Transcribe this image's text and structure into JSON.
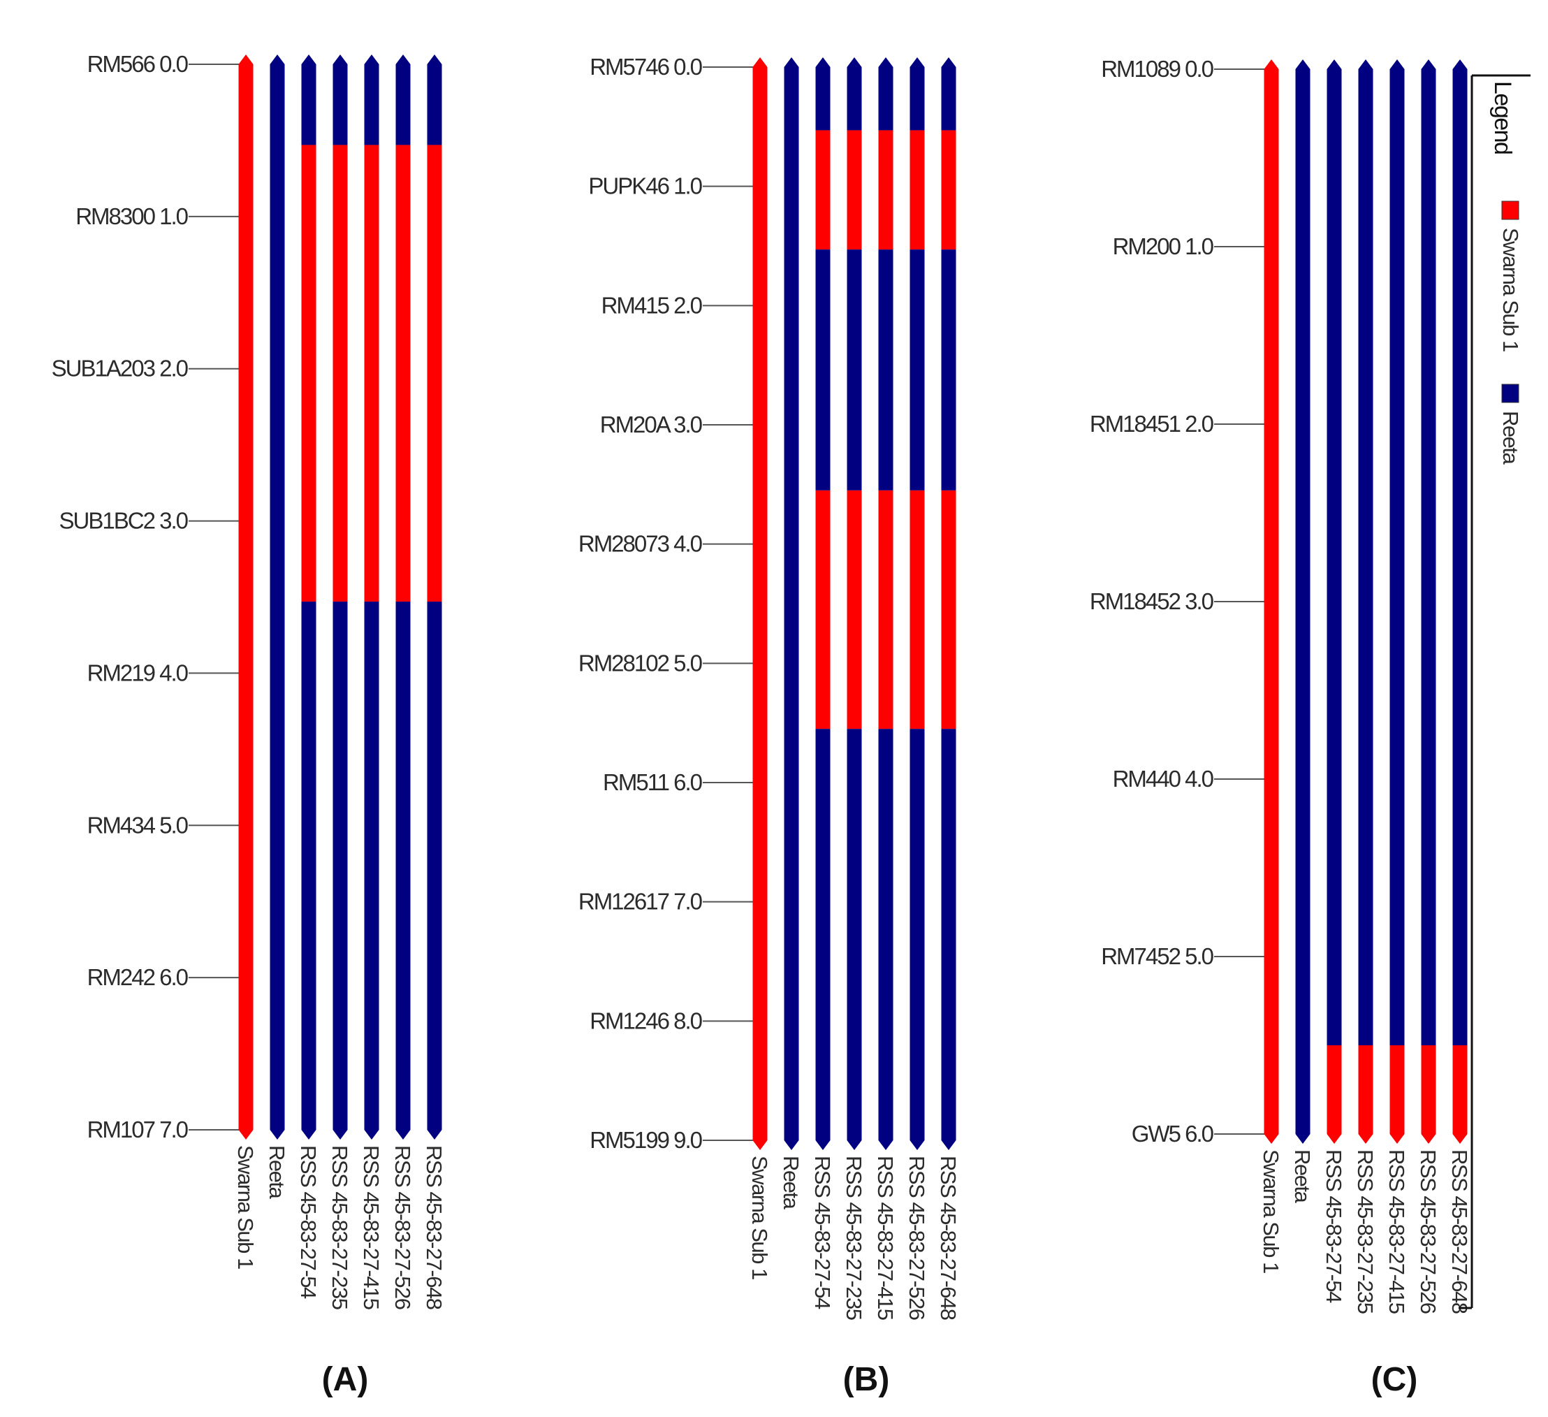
{
  "colors": {
    "donor": "#ff0000",
    "recurrent": "#000080",
    "tick": "#555555",
    "text": "#2b2b2b"
  },
  "chart_data": [
    {
      "type": "graphical-genotype",
      "panel_label": "(A)",
      "markers": [
        {
          "name": "RM566",
          "pos": "0.0"
        },
        {
          "name": "RM8300",
          "pos": "1.0"
        },
        {
          "name": "SUB1A203",
          "pos": "2.0"
        },
        {
          "name": "SUB1BC2",
          "pos": "3.0"
        },
        {
          "name": "RM219",
          "pos": "4.0"
        },
        {
          "name": "RM434",
          "pos": "5.0"
        },
        {
          "name": "RM242",
          "pos": "6.0"
        },
        {
          "name": "RM107",
          "pos": "7.0"
        }
      ],
      "lines": [
        {
          "name": "Swarna Sub 1",
          "segments": [
            {
              "from": 0.0,
              "to": 7.0,
              "allele": "donor"
            }
          ]
        },
        {
          "name": "Reeta",
          "segments": [
            {
              "from": 0.0,
              "to": 7.0,
              "allele": "recurrent"
            }
          ]
        },
        {
          "name": "RSS 45-83-27-54",
          "segments": [
            {
              "from": 0.0,
              "to": 0.53,
              "allele": "recurrent"
            },
            {
              "from": 0.53,
              "to": 3.53,
              "allele": "donor"
            },
            {
              "from": 3.53,
              "to": 7.0,
              "allele": "recurrent"
            }
          ]
        },
        {
          "name": "RSS 45-83-27-235",
          "segments": [
            {
              "from": 0.0,
              "to": 0.53,
              "allele": "recurrent"
            },
            {
              "from": 0.53,
              "to": 3.53,
              "allele": "donor"
            },
            {
              "from": 3.53,
              "to": 7.0,
              "allele": "recurrent"
            }
          ]
        },
        {
          "name": "RSS 45-83-27-415",
          "segments": [
            {
              "from": 0.0,
              "to": 0.53,
              "allele": "recurrent"
            },
            {
              "from": 0.53,
              "to": 3.53,
              "allele": "donor"
            },
            {
              "from": 3.53,
              "to": 7.0,
              "allele": "recurrent"
            }
          ]
        },
        {
          "name": "RSS 45-83-27-526",
          "segments": [
            {
              "from": 0.0,
              "to": 0.53,
              "allele": "recurrent"
            },
            {
              "from": 0.53,
              "to": 3.53,
              "allele": "donor"
            },
            {
              "from": 3.53,
              "to": 7.0,
              "allele": "recurrent"
            }
          ]
        },
        {
          "name": "RSS 45-83-27-648",
          "segments": [
            {
              "from": 0.0,
              "to": 0.53,
              "allele": "recurrent"
            },
            {
              "from": 0.53,
              "to": 3.53,
              "allele": "donor"
            },
            {
              "from": 3.53,
              "to": 7.0,
              "allele": "recurrent"
            }
          ]
        }
      ]
    },
    {
      "type": "graphical-genotype",
      "panel_label": "(B)",
      "markers": [
        {
          "name": "RM5746",
          "pos": "0.0"
        },
        {
          "name": "PUPK46",
          "pos": "1.0"
        },
        {
          "name": "RM415",
          "pos": "2.0"
        },
        {
          "name": "RM20A",
          "pos": "3.0"
        },
        {
          "name": "RM28073",
          "pos": "4.0"
        },
        {
          "name": "RM28102",
          "pos": "5.0"
        },
        {
          "name": "RM511",
          "pos": "6.0"
        },
        {
          "name": "RM12617",
          "pos": "7.0"
        },
        {
          "name": "RM1246",
          "pos": "8.0"
        },
        {
          "name": "RM5199",
          "pos": "9.0"
        }
      ],
      "lines": [
        {
          "name": "Swarna Sub 1",
          "segments": [
            {
              "from": 0.0,
              "to": 9.0,
              "allele": "donor"
            }
          ]
        },
        {
          "name": "Reeta",
          "segments": [
            {
              "from": 0.0,
              "to": 9.0,
              "allele": "recurrent"
            }
          ]
        },
        {
          "name": "RSS 45-83-27-54",
          "segments": [
            {
              "from": 0.0,
              "to": 0.53,
              "allele": "recurrent"
            },
            {
              "from": 0.53,
              "to": 1.53,
              "allele": "donor"
            },
            {
              "from": 1.53,
              "to": 3.55,
              "allele": "recurrent"
            },
            {
              "from": 3.55,
              "to": 5.55,
              "allele": "donor"
            },
            {
              "from": 5.55,
              "to": 9.0,
              "allele": "recurrent"
            }
          ]
        },
        {
          "name": "RSS 45-83-27-235",
          "segments": [
            {
              "from": 0.0,
              "to": 0.53,
              "allele": "recurrent"
            },
            {
              "from": 0.53,
              "to": 1.53,
              "allele": "donor"
            },
            {
              "from": 1.53,
              "to": 3.55,
              "allele": "recurrent"
            },
            {
              "from": 3.55,
              "to": 5.55,
              "allele": "donor"
            },
            {
              "from": 5.55,
              "to": 9.0,
              "allele": "recurrent"
            }
          ]
        },
        {
          "name": "RSS 45-83-27-415",
          "segments": [
            {
              "from": 0.0,
              "to": 0.53,
              "allele": "recurrent"
            },
            {
              "from": 0.53,
              "to": 1.53,
              "allele": "donor"
            },
            {
              "from": 1.53,
              "to": 3.55,
              "allele": "recurrent"
            },
            {
              "from": 3.55,
              "to": 5.55,
              "allele": "donor"
            },
            {
              "from": 5.55,
              "to": 9.0,
              "allele": "recurrent"
            }
          ]
        },
        {
          "name": "RSS 45-83-27-526",
          "segments": [
            {
              "from": 0.0,
              "to": 0.53,
              "allele": "recurrent"
            },
            {
              "from": 0.53,
              "to": 1.53,
              "allele": "donor"
            },
            {
              "from": 1.53,
              "to": 3.55,
              "allele": "recurrent"
            },
            {
              "from": 3.55,
              "to": 5.55,
              "allele": "donor"
            },
            {
              "from": 5.55,
              "to": 9.0,
              "allele": "recurrent"
            }
          ]
        },
        {
          "name": "RSS 45-83-27-648",
          "segments": [
            {
              "from": 0.0,
              "to": 0.53,
              "allele": "recurrent"
            },
            {
              "from": 0.53,
              "to": 1.53,
              "allele": "donor"
            },
            {
              "from": 1.53,
              "to": 3.55,
              "allele": "recurrent"
            },
            {
              "from": 3.55,
              "to": 5.55,
              "allele": "donor"
            },
            {
              "from": 5.55,
              "to": 9.0,
              "allele": "recurrent"
            }
          ]
        }
      ]
    },
    {
      "type": "graphical-genotype",
      "panel_label": "(C)",
      "markers": [
        {
          "name": "RM1089",
          "pos": "0.0"
        },
        {
          "name": "RM200",
          "pos": "1.0"
        },
        {
          "name": "RM18451",
          "pos": "2.0"
        },
        {
          "name": "RM18452",
          "pos": "3.0"
        },
        {
          "name": "RM440",
          "pos": "4.0"
        },
        {
          "name": "RM7452",
          "pos": "5.0"
        },
        {
          "name": "GW5",
          "pos": "6.0"
        }
      ],
      "lines": [
        {
          "name": "Swarna Sub 1",
          "segments": [
            {
              "from": 0.0,
              "to": 6.0,
              "allele": "donor"
            }
          ]
        },
        {
          "name": "Reeta",
          "segments": [
            {
              "from": 0.0,
              "to": 6.0,
              "allele": "recurrent"
            }
          ]
        },
        {
          "name": "RSS 45-83-27-54",
          "segments": [
            {
              "from": 0.0,
              "to": 5.5,
              "allele": "recurrent"
            },
            {
              "from": 5.5,
              "to": 6.0,
              "allele": "donor"
            }
          ]
        },
        {
          "name": "RSS 45-83-27-235",
          "segments": [
            {
              "from": 0.0,
              "to": 5.5,
              "allele": "recurrent"
            },
            {
              "from": 5.5,
              "to": 6.0,
              "allele": "donor"
            }
          ]
        },
        {
          "name": "RSS 45-83-27-415",
          "segments": [
            {
              "from": 0.0,
              "to": 5.5,
              "allele": "recurrent"
            },
            {
              "from": 5.5,
              "to": 6.0,
              "allele": "donor"
            }
          ]
        },
        {
          "name": "RSS 45-83-27-526",
          "segments": [
            {
              "from": 0.0,
              "to": 5.5,
              "allele": "recurrent"
            },
            {
              "from": 5.5,
              "to": 6.0,
              "allele": "donor"
            }
          ]
        },
        {
          "name": "RSS 45-83-27-648",
          "segments": [
            {
              "from": 0.0,
              "to": 5.5,
              "allele": "recurrent"
            },
            {
              "from": 5.5,
              "to": 6.0,
              "allele": "donor"
            }
          ]
        }
      ]
    }
  ],
  "legend": {
    "title": "Legend",
    "items": [
      {
        "label": "Swarna Sub 1",
        "allele": "donor"
      },
      {
        "label": "Reeta",
        "allele": "recurrent"
      }
    ]
  }
}
